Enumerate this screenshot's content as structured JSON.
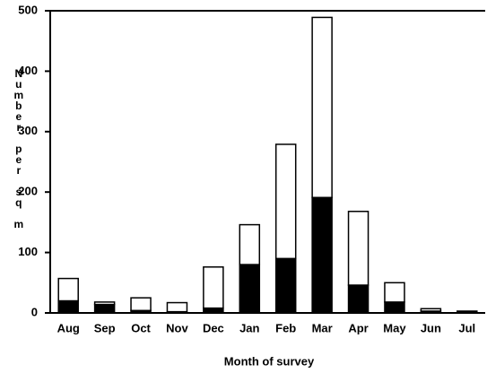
{
  "chart_data": {
    "type": "stacked-bar",
    "x_label": "Month of survey",
    "y_label": "Number per sq m",
    "categories": [
      "Aug",
      "Sep",
      "Oct",
      "Nov",
      "Dec",
      "Jan",
      "Feb",
      "Mar",
      "Apr",
      "May",
      "Jun",
      "Jul"
    ],
    "series": [
      {
        "color": "#000000",
        "values": [
          20,
          14,
          4,
          2,
          8,
          80,
          90,
          191,
          46,
          18,
          3,
          1
        ]
      },
      {
        "color": "#ffffff",
        "values": [
          37,
          4,
          21,
          15,
          68,
          66,
          189,
          298,
          122,
          32,
          4,
          2
        ]
      }
    ],
    "ylim": [
      0,
      500
    ],
    "yticks": [
      0,
      100,
      200,
      300,
      400,
      500
    ],
    "grid": false
  }
}
